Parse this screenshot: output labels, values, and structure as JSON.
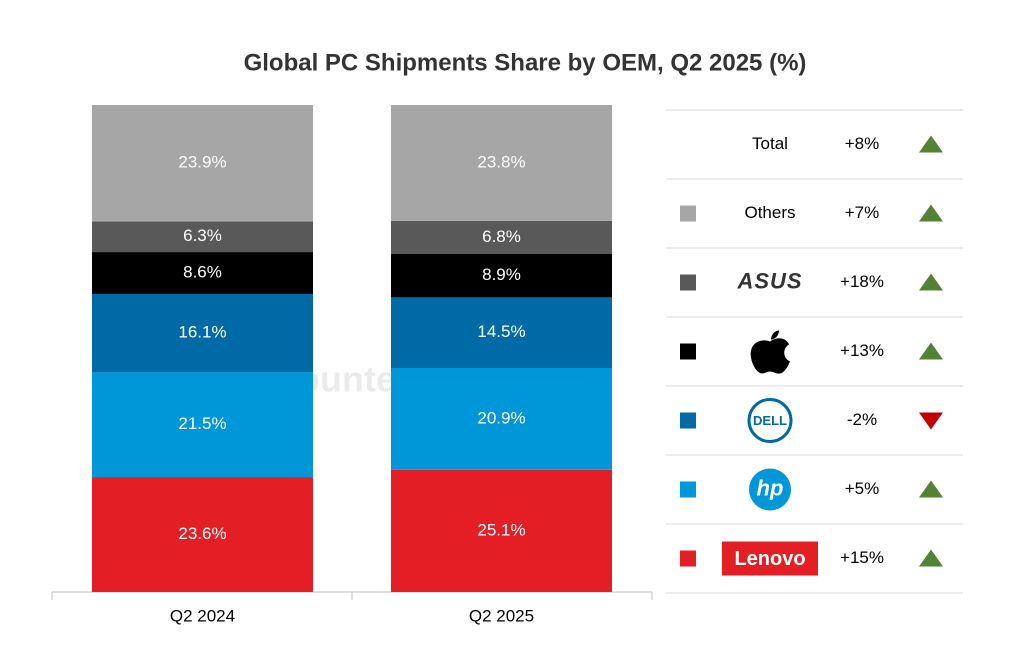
{
  "chart_data": {
    "type": "stacked-bar",
    "title": "Global PC Shipments Share by OEM, Q2 2025 (%)",
    "watermark": "Counterpoint",
    "categories": [
      "Q2 2024",
      "Q2 2025"
    ],
    "ylim": [
      0,
      100
    ],
    "series": [
      {
        "name": "Lenovo",
        "color": "#e31e24",
        "values": [
          23.6,
          25.1
        ],
        "value_labels": [
          "23.6%",
          "25.1%"
        ],
        "change": "+15%",
        "trend": "up"
      },
      {
        "name": "hp",
        "color": "#0097d8",
        "values": [
          21.5,
          20.9
        ],
        "value_labels": [
          "21.5%",
          "20.9%"
        ],
        "change": "+5%",
        "trend": "up"
      },
      {
        "name": "DELL",
        "color": "#006aa7",
        "values": [
          16.1,
          14.5
        ],
        "value_labels": [
          "16.1%",
          "14.5%"
        ],
        "change": "-2%",
        "trend": "down"
      },
      {
        "color": "#000000",
        "values": [
          8.6,
          8.9
        ],
        "value_labels": [
          "8.6%",
          "8.9%"
        ],
        "change": "+13%",
        "trend": "up"
      },
      {
        "name": "ASUS",
        "color": "#595959",
        "values": [
          6.3,
          6.8
        ],
        "value_labels": [
          "6.3%",
          "6.8%"
        ],
        "change": "+18%",
        "trend": "up"
      },
      {
        "name": "Others",
        "color": "#a6a6a6",
        "values": [
          23.9,
          23.8
        ],
        "value_labels": [
          "23.9%",
          "23.8%"
        ],
        "change": "+7%",
        "trend": "up"
      }
    ],
    "total": {
      "label": "Total",
      "change": "+8%",
      "trend": "up"
    },
    "trend_colors": {
      "up": "#548235",
      "down": "#c00000"
    }
  }
}
